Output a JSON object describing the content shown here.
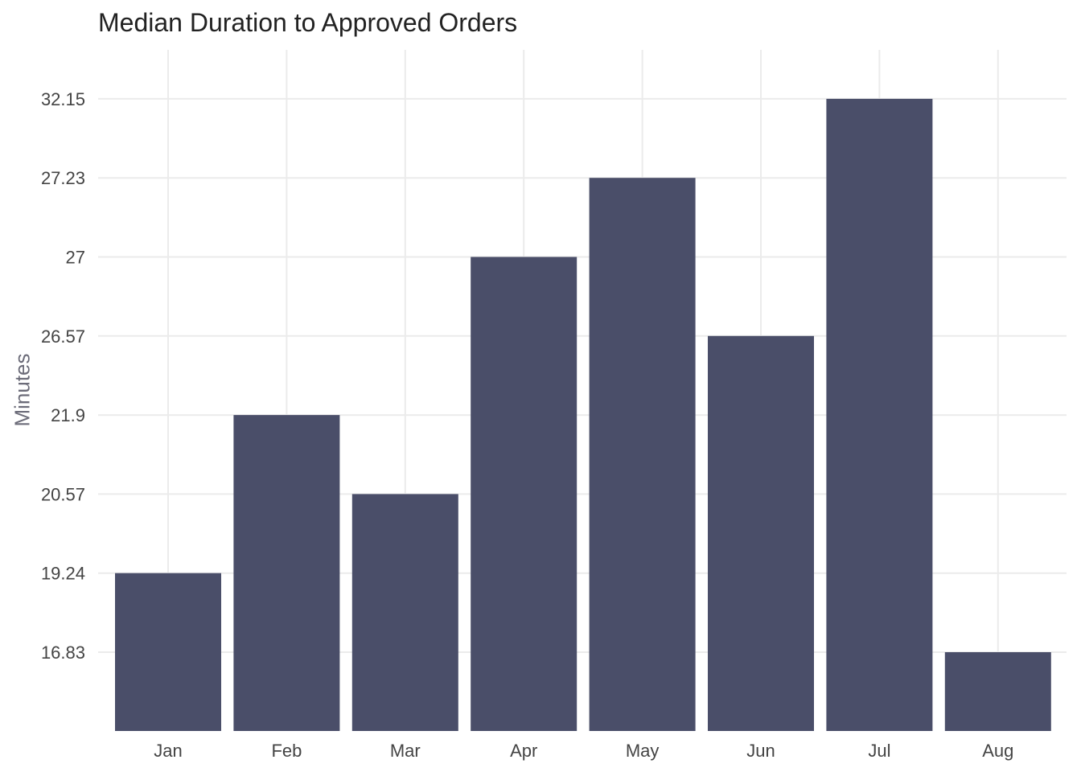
{
  "chart_data": {
    "type": "bar",
    "title": "Median Duration to Approved Orders",
    "xlabel": "",
    "ylabel": "Minutes",
    "categories": [
      "Jan",
      "Feb",
      "Mar",
      "Apr",
      "May",
      "Jun",
      "Jul",
      "Aug"
    ],
    "values": [
      19.24,
      21.9,
      20.57,
      27,
      27.23,
      26.57,
      32.15,
      16.83
    ],
    "y_tick_labels": [
      "16.83",
      "19.24",
      "20.57",
      "21.9",
      "26.57",
      "27",
      "27.23",
      "32.15"
    ],
    "y_scale": "ordinal (each tick is one distinct value, equally spaced)",
    "grid": true,
    "legend": "none",
    "bar_color": "#4a4e69",
    "grid_color": "#ebebeb"
  }
}
